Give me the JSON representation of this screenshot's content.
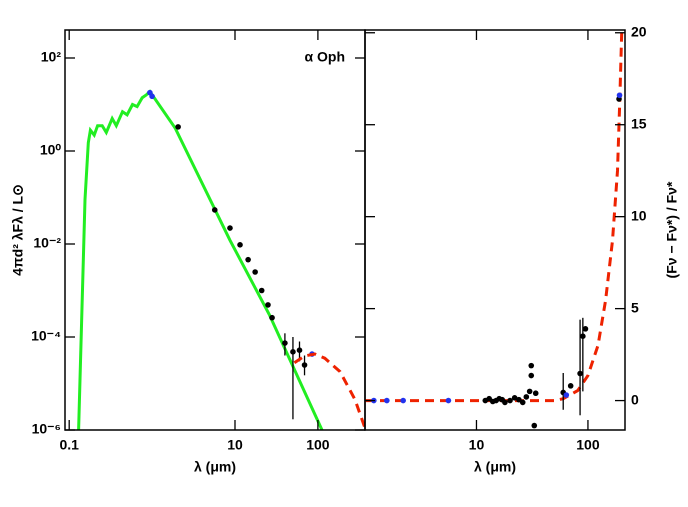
{
  "chart_data": [
    {
      "type": "sed",
      "annotation": "α Oph",
      "xlabel": "λ (μm)",
      "ylabel": "4πd² λFλ / L⊙",
      "xlog": true,
      "ylog": true,
      "xlim": [
        0.089,
        370
      ],
      "ylim": [
        1e-06,
        400
      ],
      "xticks": [
        0.1,
        10,
        100
      ],
      "yticks": [
        {
          "value": 1e-06,
          "label": "10⁻⁶"
        },
        {
          "value": 0.0001,
          "label": "10⁻⁴"
        },
        {
          "value": 0.01,
          "label": "10⁻²"
        },
        {
          "value": 1,
          "label": "10⁰"
        },
        {
          "value": 100,
          "label": "10²"
        }
      ],
      "series": [
        {
          "style": "line",
          "color": "#22ee22",
          "x": [
            0.13,
            0.155,
            0.17,
            0.18,
            0.2,
            0.22,
            0.25,
            0.28,
            0.33,
            0.37,
            0.44,
            0.5,
            0.58,
            0.66,
            0.76,
            0.85,
            0.94,
            1.9,
            8.7,
            26,
            112
          ],
          "values": [
            1e-06,
            0.09,
            1.5,
            2.8,
            2.2,
            3.5,
            3.5,
            2.5,
            5,
            3.5,
            7,
            6,
            10,
            9,
            14,
            16,
            19,
            3.1,
            0.012,
            0.0003,
            1e-06
          ]
        },
        {
          "style": "points",
          "color": "#000000",
          "x": [
            2.06,
            5.7,
            8.7,
            11.5,
            14.4,
            17.5,
            21,
            25,
            28,
            40,
            50,
            60,
            69
          ],
          "values": [
            3.3,
            0.054,
            0.022,
            0.0096,
            0.0046,
            0.0025,
            0.001,
            0.00049,
            0.00026,
            7.4e-05,
            4.8e-05,
            5.2e-05,
            2.5e-05
          ],
          "lower": [
            null,
            null,
            null,
            null,
            null,
            null,
            null,
            null,
            null,
            4e-05,
            1.7e-06,
            3e-05,
            1.5e-05
          ],
          "upper": [
            null,
            null,
            null,
            null,
            null,
            null,
            null,
            null,
            null,
            0.00012,
            0.0001,
            8e-05,
            4e-05
          ]
        },
        {
          "style": "points",
          "color": "#2233ee",
          "x": [
            0.94,
            1.0,
            85
          ],
          "values": [
            18,
            15,
            4.3e-05
          ]
        },
        {
          "style": "dashed",
          "color": "#ee2200",
          "x": [
            52,
            69,
            92,
            121,
            185,
            280,
            370
          ],
          "values": [
            2.8e-05,
            3.9e-05,
            4.3e-05,
            3.5e-05,
            1.8e-05,
            4.5e-06,
            1.1e-06
          ]
        }
      ]
    },
    {
      "type": "sed",
      "xlabel": "λ (μm)",
      "ylabel": "(Fν − Fν*) / Fν*",
      "xlog": true,
      "ylog": false,
      "xlim": [
        1,
        215
      ],
      "ylim": [
        -1.6,
        20.15
      ],
      "xticks": [
        10,
        100
      ],
      "yticks": [
        0,
        5,
        10,
        15,
        20
      ],
      "yaxis_side": "right",
      "series": [
        {
          "style": "dashed",
          "color": "#ee2200",
          "x": [
            1,
            50,
            60,
            81,
            100,
            123,
            144,
            166,
            184,
            193,
            201
          ],
          "values": [
            0,
            0,
            0.1,
            0.54,
            1.36,
            3,
            5.45,
            8.7,
            12.5,
            16.35,
            20
          ]
        },
        {
          "style": "points",
          "color": "#000000",
          "x": [
            12,
            13,
            14,
            15,
            16,
            17,
            18,
            20,
            22,
            24,
            26,
            28,
            30,
            31,
            31,
            33,
            34,
            60,
            70,
            85,
            90,
            95,
            190
          ],
          "values": [
            0,
            0.1,
            -0.05,
            0,
            0.1,
            0.05,
            -0.1,
            0,
            0.15,
            0.05,
            -0.1,
            0.2,
            0.5,
            1.9,
            1.36,
            -1.36,
            0.4,
            0.44,
            0.8,
            1.47,
            3.5,
            3.9,
            16.4
          ],
          "lower": [
            null,
            null,
            null,
            null,
            null,
            null,
            null,
            null,
            null,
            null,
            null,
            null,
            null,
            null,
            null,
            null,
            null,
            -0.5,
            null,
            -0.8,
            0.5,
            null,
            null
          ],
          "upper": [
            null,
            null,
            null,
            null,
            null,
            null,
            null,
            null,
            null,
            null,
            null,
            null,
            null,
            null,
            null,
            null,
            null,
            1.5,
            null,
            4.4,
            4.5,
            null,
            null
          ]
        },
        {
          "style": "points",
          "color": "#2233ee",
          "x": [
            1.2,
            1.57,
            2.2,
            5.6,
            64,
            192
          ],
          "values": [
            0,
            0,
            0,
            0,
            0.3,
            16.6
          ]
        }
      ]
    }
  ]
}
